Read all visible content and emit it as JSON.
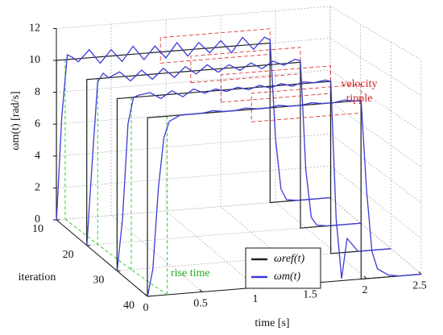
{
  "chart_data": {
    "type": "waterfall",
    "xlabel": "time [s]",
    "ylabel": "iteration",
    "zlabel": "ωm(t) [rad/s]",
    "xlim": [
      0,
      2.5
    ],
    "xticks": [
      0,
      0.5,
      1,
      1.5,
      2,
      2.5
    ],
    "ylim": [
      10,
      40
    ],
    "yticks": [
      10,
      20,
      30,
      40
    ],
    "zlim": [
      0,
      12
    ],
    "zticks": [
      0,
      2,
      4,
      6,
      8,
      10,
      12
    ],
    "grid": true,
    "iterations": [
      10,
      20,
      30,
      40
    ],
    "x": [
      0,
      0.001,
      0.05,
      0.1,
      0.15,
      0.2,
      0.3,
      0.4,
      0.5,
      0.6,
      0.7,
      0.8,
      0.9,
      1.0,
      1.1,
      1.2,
      1.3,
      1.4,
      1.5,
      1.6,
      1.7,
      1.8,
      1.9,
      1.95,
      1.951,
      2.0,
      2.05,
      2.1,
      2.2,
      2.3,
      2.5
    ],
    "reference": {
      "name": "ωref(t)",
      "color": "#222222",
      "values": [
        [
          0,
          10,
          10,
          10,
          10,
          10,
          10,
          10,
          10,
          10,
          10,
          10,
          10,
          10,
          10,
          10,
          10,
          10,
          10,
          10,
          10,
          10,
          10,
          10,
          0,
          0,
          0,
          0,
          0,
          0,
          0
        ],
        [
          0,
          10,
          10,
          10,
          10,
          10,
          10,
          10,
          10,
          10,
          10,
          10,
          10,
          10,
          10,
          10,
          10,
          10,
          10,
          10,
          10,
          10,
          10,
          10,
          0,
          0,
          0,
          0,
          0,
          0,
          0
        ],
        [
          0,
          10,
          10,
          10,
          10,
          10,
          10,
          10,
          10,
          10,
          10,
          10,
          10,
          10,
          10,
          10,
          10,
          10,
          10,
          10,
          10,
          10,
          10,
          10,
          0,
          0,
          0,
          0,
          0,
          0,
          0
        ],
        [
          0,
          10,
          10,
          10,
          10,
          10,
          10,
          10,
          10,
          10,
          10,
          10,
          10,
          10,
          10,
          10,
          10,
          10,
          10,
          10,
          10,
          10,
          10,
          10,
          0,
          0,
          0,
          0,
          0,
          0,
          0
        ]
      ]
    },
    "measured": {
      "name": "ωm(t)",
      "color": "#3b3bd6",
      "values": [
        [
          0,
          0,
          6.5,
          10.3,
          10.1,
          9.8,
          10.5,
          9.6,
          10.4,
          9.6,
          10.5,
          9.6,
          10.4,
          9.6,
          10.5,
          9.6,
          10.4,
          9.7,
          10.4,
          9.6,
          10.5,
          9.7,
          10.4,
          10.2,
          10.2,
          4.0,
          0.8,
          0.1,
          0,
          0,
          0
        ],
        [
          0,
          0,
          5,
          9.8,
          10.3,
          10.0,
          10.3,
          9.7,
          10.3,
          9.7,
          10.3,
          9.7,
          10.3,
          9.8,
          10.3,
          9.8,
          10.2,
          9.8,
          10.2,
          9.8,
          10.2,
          9.9,
          10.2,
          10.1,
          10.1,
          3.5,
          0.6,
          0.1,
          0,
          0,
          0
        ],
        [
          0,
          0,
          3,
          8.5,
          10,
          10.1,
          10.2,
          9.8,
          10.2,
          9.8,
          10.2,
          9.9,
          10.1,
          9.9,
          10.1,
          9.9,
          10.1,
          9.9,
          10.1,
          9.9,
          10.1,
          10,
          10.1,
          10,
          10,
          2,
          -1.5,
          0.8,
          0,
          0,
          0
        ],
        [
          0,
          0,
          1.5,
          6,
          8.8,
          9.7,
          10,
          10,
          10,
          10.1,
          10,
          10,
          10.1,
          10,
          10,
          10.1,
          10,
          10,
          10.1,
          10,
          10,
          10.1,
          10,
          10,
          10,
          5,
          1.5,
          0.5,
          0.1,
          0,
          0
        ]
      ]
    },
    "rise_times": [
      0.08,
      0.1,
      0.13,
      0.18
    ],
    "annotations": [
      "velocity ripple",
      "rise time"
    ]
  }
}
